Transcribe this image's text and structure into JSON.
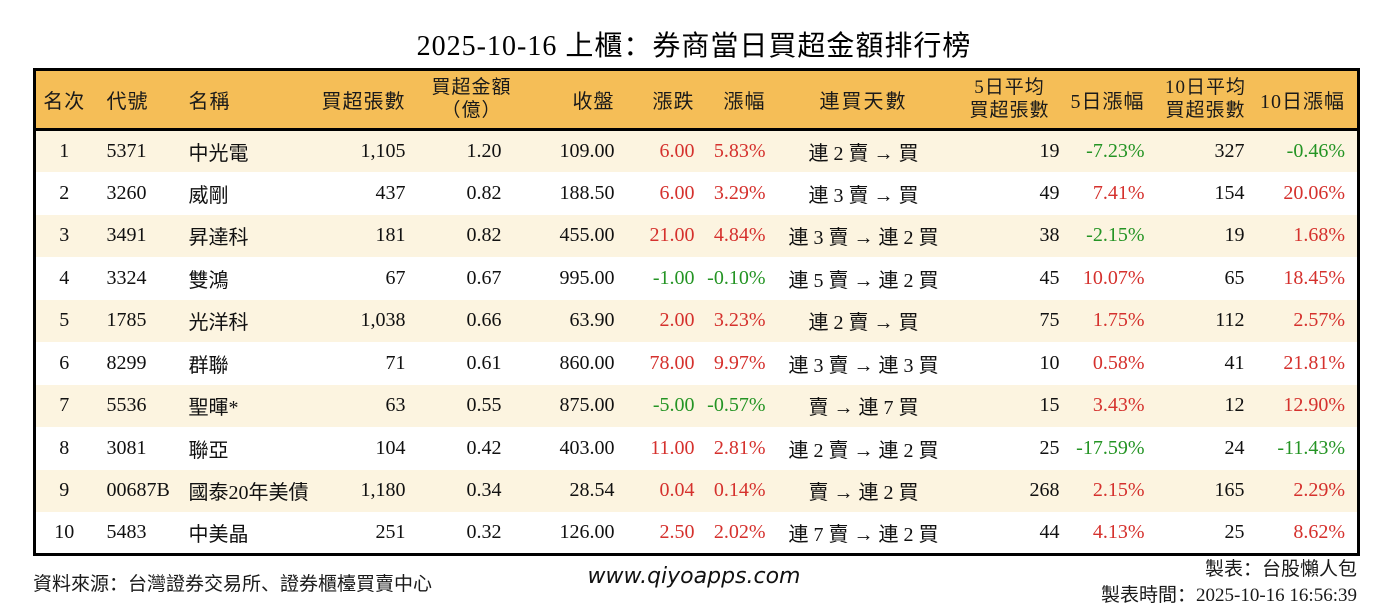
{
  "page": {
    "title": "2025-10-16 上櫃：券商當日買超金額排行榜"
  },
  "colors": {
    "header_bg": "#F5BE57",
    "row_stripe_bg": "#FCF4E0",
    "up_red": "#D5312D",
    "down_green": "#249424",
    "border": "#000000"
  },
  "chart_data": {
    "type": "table",
    "title": "2025-10-16 上櫃：券商當日買超金額排行榜",
    "columns": [
      "名次",
      "代號",
      "名稱",
      "買超張數",
      "買超金額\n（億）",
      "收盤",
      "漲跌",
      "漲幅",
      "連買天數",
      "5日平均\n買超張數",
      "5日漲幅",
      "10日平均\n買超張數",
      "10日漲幅"
    ],
    "rows": [
      {
        "rank": "1",
        "code": "5371",
        "name": "中光電",
        "net_buy_vol": "1,105",
        "net_buy_amount": "1.20",
        "close": "109.00",
        "change": "6.00",
        "change_dir": "up",
        "change_pct": "5.83%",
        "change_pct_dir": "up",
        "streak": "連 2 賣 → 買",
        "avg5_vol": "19",
        "pct5": "-7.23%",
        "pct5_dir": "down",
        "avg10_vol": "327",
        "pct10": "-0.46%",
        "pct10_dir": "down"
      },
      {
        "rank": "2",
        "code": "3260",
        "name": "威剛",
        "net_buy_vol": "437",
        "net_buy_amount": "0.82",
        "close": "188.50",
        "change": "6.00",
        "change_dir": "up",
        "change_pct": "3.29%",
        "change_pct_dir": "up",
        "streak": "連 3 賣 → 買",
        "avg5_vol": "49",
        "pct5": "7.41%",
        "pct5_dir": "up",
        "avg10_vol": "154",
        "pct10": "20.06%",
        "pct10_dir": "up"
      },
      {
        "rank": "3",
        "code": "3491",
        "name": "昇達科",
        "net_buy_vol": "181",
        "net_buy_amount": "0.82",
        "close": "455.00",
        "change": "21.00",
        "change_dir": "up",
        "change_pct": "4.84%",
        "change_pct_dir": "up",
        "streak": "連 3 賣 → 連 2 買",
        "avg5_vol": "38",
        "pct5": "-2.15%",
        "pct5_dir": "down",
        "avg10_vol": "19",
        "pct10": "1.68%",
        "pct10_dir": "up"
      },
      {
        "rank": "4",
        "code": "3324",
        "name": "雙鴻",
        "net_buy_vol": "67",
        "net_buy_amount": "0.67",
        "close": "995.00",
        "change": "-1.00",
        "change_dir": "down",
        "change_pct": "-0.10%",
        "change_pct_dir": "down",
        "streak": "連 5 賣 → 連 2 買",
        "avg5_vol": "45",
        "pct5": "10.07%",
        "pct5_dir": "up",
        "avg10_vol": "65",
        "pct10": "18.45%",
        "pct10_dir": "up"
      },
      {
        "rank": "5",
        "code": "1785",
        "name": "光洋科",
        "net_buy_vol": "1,038",
        "net_buy_amount": "0.66",
        "close": "63.90",
        "change": "2.00",
        "change_dir": "up",
        "change_pct": "3.23%",
        "change_pct_dir": "up",
        "streak": "連 2 賣 → 買",
        "avg5_vol": "75",
        "pct5": "1.75%",
        "pct5_dir": "up",
        "avg10_vol": "112",
        "pct10": "2.57%",
        "pct10_dir": "up"
      },
      {
        "rank": "6",
        "code": "8299",
        "name": "群聯",
        "net_buy_vol": "71",
        "net_buy_amount": "0.61",
        "close": "860.00",
        "change": "78.00",
        "change_dir": "up",
        "change_pct": "9.97%",
        "change_pct_dir": "up",
        "streak": "連 3 賣 → 連 3 買",
        "avg5_vol": "10",
        "pct5": "0.58%",
        "pct5_dir": "up",
        "avg10_vol": "41",
        "pct10": "21.81%",
        "pct10_dir": "up"
      },
      {
        "rank": "7",
        "code": "5536",
        "name": "聖暉*",
        "net_buy_vol": "63",
        "net_buy_amount": "0.55",
        "close": "875.00",
        "change": "-5.00",
        "change_dir": "down",
        "change_pct": "-0.57%",
        "change_pct_dir": "down",
        "streak": "賣 → 連 7 買",
        "avg5_vol": "15",
        "pct5": "3.43%",
        "pct5_dir": "up",
        "avg10_vol": "12",
        "pct10": "12.90%",
        "pct10_dir": "up"
      },
      {
        "rank": "8",
        "code": "3081",
        "name": "聯亞",
        "net_buy_vol": "104",
        "net_buy_amount": "0.42",
        "close": "403.00",
        "change": "11.00",
        "change_dir": "up",
        "change_pct": "2.81%",
        "change_pct_dir": "up",
        "streak": "連 2 賣 → 連 2 買",
        "avg5_vol": "25",
        "pct5": "-17.59%",
        "pct5_dir": "down",
        "avg10_vol": "24",
        "pct10": "-11.43%",
        "pct10_dir": "down"
      },
      {
        "rank": "9",
        "code": "00687B",
        "name": "國泰20年美債",
        "net_buy_vol": "1,180",
        "net_buy_amount": "0.34",
        "close": "28.54",
        "change": "0.04",
        "change_dir": "up",
        "change_pct": "0.14%",
        "change_pct_dir": "up",
        "streak": "賣 → 連 2 買",
        "avg5_vol": "268",
        "pct5": "2.15%",
        "pct5_dir": "up",
        "avg10_vol": "165",
        "pct10": "2.29%",
        "pct10_dir": "up"
      },
      {
        "rank": "10",
        "code": "5483",
        "name": "中美晶",
        "net_buy_vol": "251",
        "net_buy_amount": "0.32",
        "close": "126.00",
        "change": "2.50",
        "change_dir": "up",
        "change_pct": "2.02%",
        "change_pct_dir": "up",
        "streak": "連 7 賣 → 連 2 買",
        "avg5_vol": "44",
        "pct5": "4.13%",
        "pct5_dir": "up",
        "avg10_vol": "25",
        "pct10": "8.62%",
        "pct10_dir": "up"
      }
    ]
  },
  "footer": {
    "source": "資料來源：台灣證券交易所、證券櫃檯買賣中心",
    "website": "www.qiyoapps.com",
    "maker": "製表：台股懶人包",
    "made_time": "製表時間：2025-10-16 16:56:39"
  }
}
